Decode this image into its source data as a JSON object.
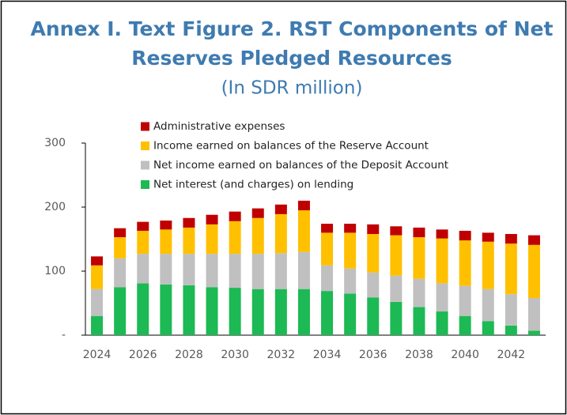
{
  "chart_data": {
    "type": "stacked_bar",
    "title": "Annex I. Text Figure 2. RST Components of Net",
    "title_line2": "Reserves Pledged Resources",
    "subtitle": "(In SDR million)",
    "categories": [
      "2024",
      null,
      "2026",
      null,
      "2028",
      null,
      "2030",
      null,
      "2032",
      null,
      "2034",
      null,
      "2036",
      null,
      "2038",
      null,
      "2040",
      null,
      "2042",
      null
    ],
    "series": [
      {
        "name": "Net interest (and charges) on lending",
        "color": "#1db954",
        "values": [
          30,
          75,
          81,
          79,
          78,
          75,
          74,
          72,
          72,
          72,
          69,
          65,
          59,
          52,
          44,
          37,
          30,
          22,
          15,
          7
        ]
      },
      {
        "name": "Net income earned on balances of the Deposit Account",
        "color": "#c0c0c0",
        "values": [
          42,
          45,
          46,
          48,
          49,
          52,
          53,
          55,
          56,
          58,
          40,
          39,
          39,
          41,
          44,
          44,
          47,
          50,
          49,
          51
        ]
      },
      {
        "name": "Income earned on balances of the Reserve Account",
        "color": "#ffc000",
        "values": [
          37,
          33,
          36,
          38,
          41,
          46,
          51,
          56,
          61,
          65,
          51,
          56,
          60,
          63,
          65,
          70,
          71,
          74,
          79,
          83
        ]
      },
      {
        "name": "Administrative expenses",
        "color": "#c00000",
        "values": [
          14,
          14,
          14,
          14,
          15,
          15,
          15,
          15,
          15,
          15,
          14,
          14,
          15,
          14,
          15,
          14,
          15,
          14,
          15,
          15
        ]
      }
    ],
    "ylim": [
      0,
      300
    ],
    "yticks": [
      {
        "value": 0,
        "label": "-"
      },
      100,
      200,
      300
    ]
  }
}
